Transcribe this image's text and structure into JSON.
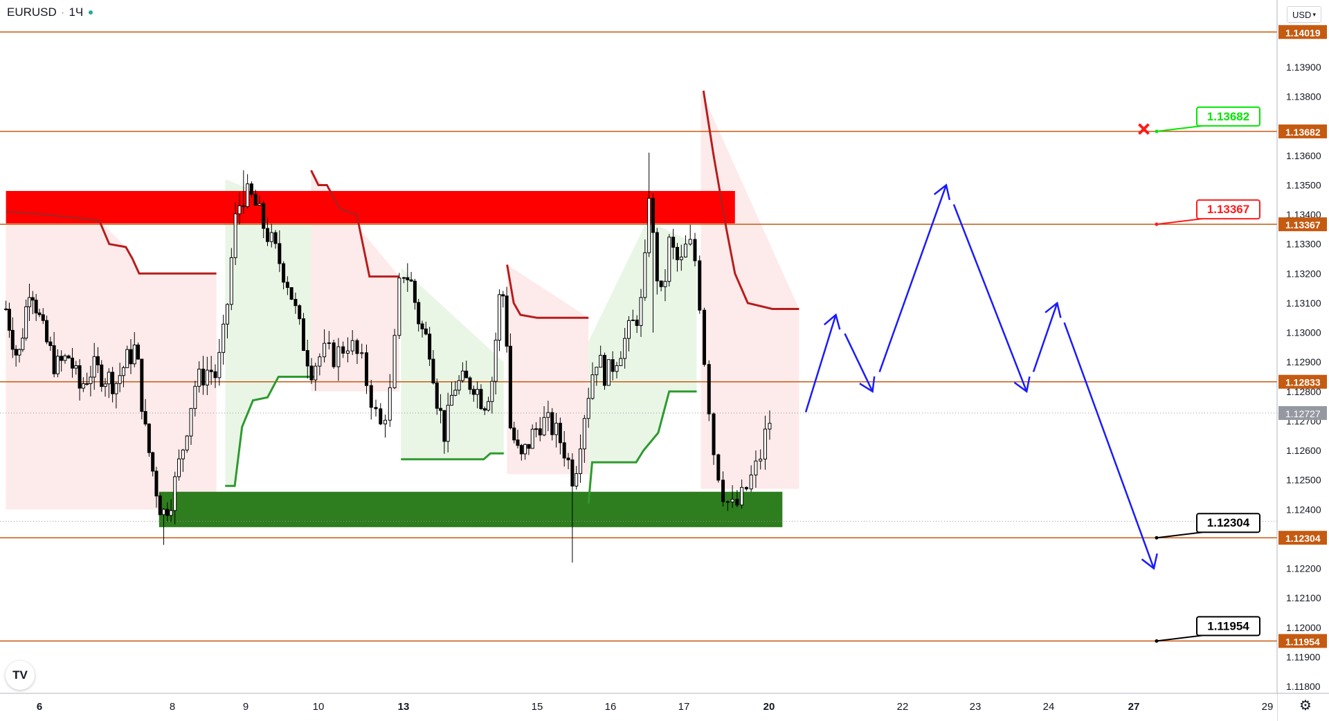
{
  "header": {
    "symbol": "EURUSD",
    "interval": "1Ч",
    "currency": "USD"
  },
  "icons": {
    "logo": "tradingview-logo-icon",
    "settings": "gear-icon",
    "currency_menu": "chevron-down-icon",
    "cross": "close-icon"
  },
  "colors": {
    "level_line": "#c55a11",
    "level_label_bg": "#c55a11",
    "up_candle": "#ffffff",
    "down_candle": "#000000",
    "wick": "#000000",
    "resistance_zone": "#ff0000",
    "support_zone": "#2e7d1e",
    "stop_down": "#b71c1c",
    "stop_up": "#2e9a2e",
    "fill_down": "#fdeaea",
    "fill_up": "#e9f6e6",
    "projection": "#1a1aff",
    "target_green": "#00e600",
    "target_red": "#ff1a1a",
    "current_price_bg": "#9598a1"
  },
  "chart_data": {
    "type": "candlestick",
    "title": "EURUSD",
    "interval": "1Ч",
    "ylim": [
      1.1175,
      1.1414
    ],
    "y_ticks": [
      "1.13900",
      "1.13800",
      "1.13600",
      "1.13500",
      "1.13400",
      "1.13300",
      "1.13200",
      "1.13100",
      "1.13000",
      "1.12900",
      "1.12800",
      "1.12700",
      "1.12600",
      "1.12500",
      "1.12400",
      "1.12200",
      "1.12100",
      "1.12000",
      "1.11900",
      "1.11800"
    ],
    "x_ticks": [
      {
        "label": "6",
        "d": 0
      },
      {
        "label": "8",
        "d": 2
      },
      {
        "label": "9",
        "d": 3
      },
      {
        "label": "10",
        "d": 4
      },
      {
        "label": "13",
        "d": 5
      },
      {
        "label": "15",
        "d": 7
      },
      {
        "label": "16",
        "d": 8
      },
      {
        "label": "17",
        "d": 9
      },
      {
        "label": "20",
        "d": 10
      },
      {
        "label": "22",
        "d": 12
      },
      {
        "label": "23",
        "d": 13
      },
      {
        "label": "24",
        "d": 14
      },
      {
        "label": "27",
        "d": 15
      },
      {
        "label": "29",
        "d": 17
      }
    ],
    "levels": [
      {
        "value": 1.14019,
        "label": "1.14019"
      },
      {
        "value": 1.13682,
        "label": "1.13682"
      },
      {
        "value": 1.13367,
        "label": "1.13367"
      },
      {
        "value": 1.12833,
        "label": "1.12833"
      },
      {
        "value": 1.12304,
        "label": "1.12304"
      },
      {
        "value": 1.11954,
        "label": "1.11954"
      }
    ],
    "current_price": {
      "value": 1.12727,
      "label": "1.12727"
    },
    "prev_close_dotted": 1.1236,
    "zones": [
      {
        "name": "resistance",
        "d_from": -0.55,
        "d_to": 9.6,
        "y_from": 1.1337,
        "y_to": 1.1348
      },
      {
        "name": "support",
        "d_from": 1.8,
        "d_to": 10.2,
        "y_from": 1.1234,
        "y_to": 1.1246
      }
    ],
    "stop_segments": [
      {
        "dir": "down",
        "points": [
          [
            -0.55,
            1.1341
          ],
          [
            0.1,
            1.134
          ],
          [
            0.9,
            1.1338
          ],
          [
            1.05,
            1.133
          ],
          [
            1.3,
            1.1329
          ],
          [
            1.4,
            1.1325
          ],
          [
            1.5,
            1.132
          ],
          [
            2.5,
            1.132
          ],
          [
            2.6,
            1.132
          ]
        ]
      },
      {
        "dir": "up",
        "points": [
          [
            2.72,
            1.1248
          ],
          [
            2.85,
            1.1248
          ],
          [
            2.95,
            1.1268
          ],
          [
            3.1,
            1.1277
          ],
          [
            3.3,
            1.1278
          ],
          [
            3.45,
            1.1285
          ],
          [
            3.95,
            1.1285
          ]
        ]
      },
      {
        "dir": "down",
        "points": [
          [
            3.9,
            1.1355
          ],
          [
            4.0,
            1.135
          ],
          [
            4.1,
            1.135
          ],
          [
            4.25,
            1.1342
          ],
          [
            4.45,
            1.134
          ],
          [
            4.5,
            1.1333
          ],
          [
            4.6,
            1.1319
          ],
          [
            4.95,
            1.1319
          ]
        ]
      },
      {
        "dir": "up",
        "points": [
          [
            4.97,
            1.1257
          ],
          [
            6.2,
            1.1257
          ],
          [
            6.3,
            1.1259
          ],
          [
            6.5,
            1.1259
          ]
        ]
      },
      {
        "dir": "down",
        "points": [
          [
            6.55,
            1.1323
          ],
          [
            6.65,
            1.131
          ],
          [
            6.75,
            1.1306
          ],
          [
            7.0,
            1.1305
          ],
          [
            7.7,
            1.1305
          ]
        ]
      },
      {
        "dir": "up",
        "points": [
          [
            7.7,
            1.1242
          ],
          [
            7.75,
            1.1256
          ],
          [
            7.95,
            1.1256
          ],
          [
            8.35,
            1.1256
          ],
          [
            8.45,
            1.126
          ],
          [
            8.65,
            1.1266
          ],
          [
            8.8,
            1.128
          ],
          [
            9.15,
            1.128
          ]
        ]
      },
      {
        "dir": "down",
        "points": [
          [
            9.23,
            1.1382
          ],
          [
            9.35,
            1.136
          ],
          [
            9.5,
            1.1335
          ],
          [
            9.6,
            1.132
          ],
          [
            9.75,
            1.131
          ],
          [
            10.05,
            1.1308
          ],
          [
            10.45,
            1.1308
          ]
        ]
      }
    ],
    "shaded_regions": [
      {
        "dir": "down",
        "d_from": -0.55,
        "d_to": 2.6,
        "top": [
          [
            -0.55,
            1.1341
          ],
          [
            0.9,
            1.1338
          ],
          [
            1.3,
            1.1329
          ],
          [
            1.5,
            1.132
          ],
          [
            2.6,
            1.132
          ]
        ],
        "bottom": 1.124
      },
      {
        "dir": "up",
        "d_from": 2.72,
        "d_to": 3.95,
        "top": [
          [
            2.72,
            1.1352
          ],
          [
            3.95,
            1.134
          ]
        ],
        "bottom_line": true
      },
      {
        "dir": "down",
        "d_from": 3.9,
        "d_to": 4.95,
        "top": [
          [
            3.9,
            1.1355
          ],
          [
            4.95,
            1.1319
          ]
        ],
        "bottom": 1.128
      },
      {
        "dir": "up",
        "d_from": 4.97,
        "d_to": 6.5,
        "top": [
          [
            4.97,
            1.1322
          ],
          [
            6.5,
            1.129
          ]
        ],
        "bottom_line": true
      },
      {
        "dir": "down",
        "d_from": 6.55,
        "d_to": 7.7,
        "top": [
          [
            6.55,
            1.1323
          ],
          [
            7.7,
            1.1305
          ]
        ],
        "bottom": 1.1252
      },
      {
        "dir": "up",
        "d_from": 7.7,
        "d_to": 9.15,
        "top": [
          [
            7.7,
            1.1297
          ],
          [
            8.5,
            1.1338
          ],
          [
            9.15,
            1.133
          ]
        ],
        "bottom_line": true
      },
      {
        "dir": "down",
        "d_from": 9.2,
        "d_to": 10.45,
        "top": [
          [
            9.2,
            1.1382
          ],
          [
            10.45,
            1.1308
          ]
        ],
        "bottom": 1.1247
      }
    ],
    "price_path": [
      [
        -0.55,
        1.1308
      ],
      [
        -0.35,
        1.129
      ],
      [
        -0.15,
        1.1318
      ],
      [
        0.05,
        1.13
      ],
      [
        0.25,
        1.1288
      ],
      [
        0.45,
        1.1292
      ],
      [
        0.6,
        1.1281
      ],
      [
        0.8,
        1.1288
      ],
      [
        1.0,
        1.1285
      ],
      [
        1.15,
        1.1283
      ],
      [
        1.3,
        1.129
      ],
      [
        1.45,
        1.1295
      ],
      [
        1.6,
        1.1265
      ],
      [
        1.75,
        1.1248
      ],
      [
        1.85,
        1.1238
      ],
      [
        2.0,
        1.1245
      ],
      [
        2.15,
        1.1262
      ],
      [
        2.3,
        1.1282
      ],
      [
        2.5,
        1.1288
      ],
      [
        2.6,
        1.1285
      ],
      [
        2.72,
        1.1302
      ],
      [
        2.85,
        1.1337
      ],
      [
        2.95,
        1.1347
      ],
      [
        3.1,
        1.1345
      ],
      [
        3.25,
        1.1336
      ],
      [
        3.45,
        1.1325
      ],
      [
        3.6,
        1.1316
      ],
      [
        3.75,
        1.13
      ],
      [
        3.9,
        1.1288
      ],
      [
        4.05,
        1.1293
      ],
      [
        4.2,
        1.1292
      ],
      [
        4.35,
        1.1297
      ],
      [
        4.5,
        1.129
      ],
      [
        4.62,
        1.1278
      ],
      [
        4.72,
        1.1267
      ],
      [
        4.85,
        1.128
      ],
      [
        4.97,
        1.1322
      ],
      [
        5.1,
        1.1318
      ],
      [
        5.25,
        1.1302
      ],
      [
        5.4,
        1.1295
      ],
      [
        5.5,
        1.1278
      ],
      [
        5.62,
        1.1265
      ],
      [
        5.75,
        1.1282
      ],
      [
        5.9,
        1.1283
      ],
      [
        6.05,
        1.1283
      ],
      [
        6.2,
        1.1276
      ],
      [
        6.32,
        1.1283
      ],
      [
        6.45,
        1.1315
      ],
      [
        6.52,
        1.1311
      ],
      [
        6.6,
        1.1268
      ],
      [
        6.75,
        1.1256
      ],
      [
        6.9,
        1.1264
      ],
      [
        7.05,
        1.127
      ],
      [
        7.2,
        1.1268
      ],
      [
        7.35,
        1.1262
      ],
      [
        7.5,
        1.125
      ],
      [
        7.62,
        1.127
      ],
      [
        7.7,
        1.128
      ],
      [
        7.8,
        1.1292
      ],
      [
        7.95,
        1.1285
      ],
      [
        8.1,
        1.1293
      ],
      [
        8.25,
        1.13
      ],
      [
        8.35,
        1.1305
      ],
      [
        8.45,
        1.1312
      ],
      [
        8.52,
        1.135
      ],
      [
        8.6,
        1.1325
      ],
      [
        8.7,
        1.131
      ],
      [
        8.8,
        1.133
      ],
      [
        8.95,
        1.1322
      ],
      [
        9.05,
        1.1331
      ],
      [
        9.15,
        1.1323
      ],
      [
        9.25,
        1.1288
      ],
      [
        9.35,
        1.126
      ],
      [
        9.45,
        1.1247
      ],
      [
        9.55,
        1.124
      ],
      [
        9.65,
        1.1242
      ],
      [
        9.75,
        1.1248
      ],
      [
        9.88,
        1.1256
      ],
      [
        9.98,
        1.1268
      ],
      [
        10.05,
        1.1273
      ]
    ],
    "extremes": [
      {
        "d": 1.85,
        "low": 1.1228
      },
      {
        "d": 2.95,
        "high": 1.1355
      },
      {
        "d": 7.5,
        "low": 1.1222
      },
      {
        "d": 8.52,
        "high": 1.1361
      },
      {
        "d": 8.6,
        "low": 1.13
      }
    ],
    "projection_path": [
      [
        10.55,
        1.1273
      ],
      [
        11.0,
        1.1306
      ],
      [
        11.55,
        1.128
      ],
      [
        12.6,
        1.135
      ],
      [
        13.7,
        1.128
      ],
      [
        14.1,
        1.131
      ],
      [
        15.3,
        1.122
      ]
    ],
    "targets": [
      {
        "label": "1.13682",
        "value": 1.13682,
        "d": 15.3,
        "style": "green"
      },
      {
        "label": "1.13367",
        "value": 1.13367,
        "d": 15.3,
        "style": "red"
      },
      {
        "label": "1.12304",
        "value": 1.12304,
        "d": 15.3,
        "style": "black"
      },
      {
        "label": "1.11954",
        "value": 1.11954,
        "d": 15.3,
        "style": "black"
      }
    ],
    "stop_cross": {
      "d": 15.15,
      "value": 1.1369
    }
  }
}
